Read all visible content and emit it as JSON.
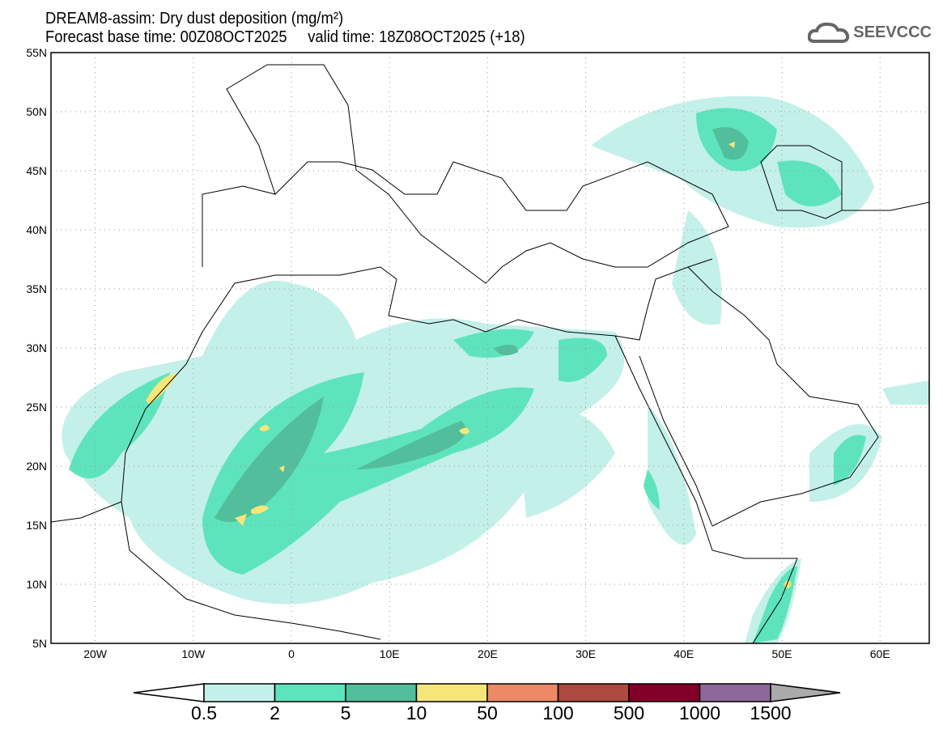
{
  "title": {
    "line1": "DREAM8-assim: Dry dust deposition (mg/m²)",
    "line2": "Forecast base time: 00Z08OCT2025     valid time: 18Z08OCT2025 (+18)"
  },
  "logo": {
    "text": "SEEVCCC",
    "icon": "cloud-icon"
  },
  "axes": {
    "lat_labels": [
      "55N",
      "50N",
      "45N",
      "40N",
      "35N",
      "30N",
      "25N",
      "20N",
      "15N",
      "10N",
      "5N"
    ],
    "lon_labels": [
      "20W",
      "10W",
      "0",
      "10E",
      "20E",
      "30E",
      "40E",
      "50E",
      "60E"
    ]
  },
  "colorbar": {
    "labels": [
      "0.5",
      "2",
      "5",
      "10",
      "50",
      "100",
      "500",
      "1000",
      "1500"
    ],
    "colors": [
      "#c4f0ea",
      "#5ee4bc",
      "#52be9b",
      "#f6e67a",
      "#ec8a68",
      "#ac4a40",
      "#820028",
      "#8c6898"
    ],
    "under_color": "#ffffff",
    "over_color": "#aaaaaa"
  }
}
